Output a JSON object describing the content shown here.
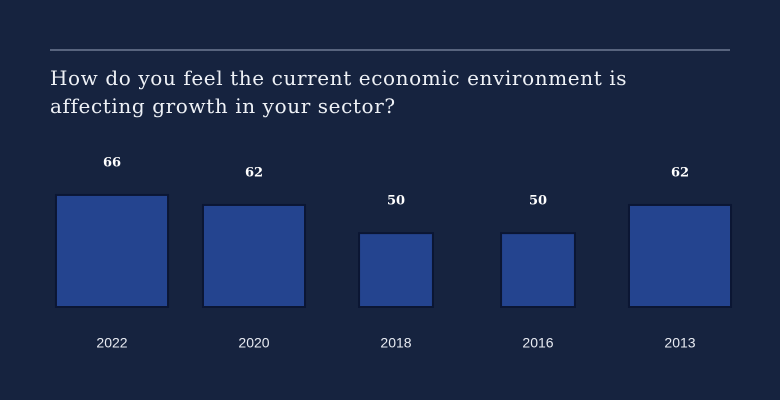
{
  "chart_data": {
    "type": "square",
    "title": "How do you feel the current economic environment is affecting growth in your sector?",
    "categories": [
      "2022",
      "2020",
      "2018",
      "2016",
      "2013"
    ],
    "values": [
      66,
      62,
      50,
      50,
      62
    ],
    "color": "#24448f"
  }
}
